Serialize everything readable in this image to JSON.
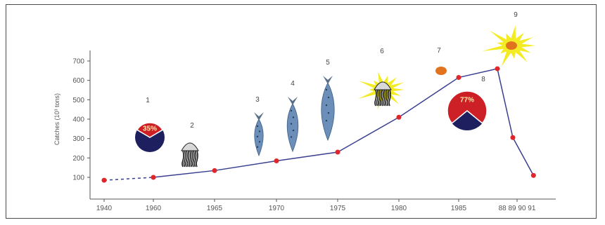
{
  "chart_data": {
    "type": "line",
    "ylabel": "Catches (10³ tons)",
    "yticks": [
      100,
      200,
      300,
      400,
      500,
      600,
      700
    ],
    "xticks": [
      "1940",
      "1960",
      "1965",
      "1970",
      "1975",
      "1980",
      "1985",
      "88 89 90 91"
    ],
    "series": [
      {
        "points": [
          {
            "x": 1940,
            "y": 85
          },
          {
            "x": 1960,
            "y": 100
          },
          {
            "x": 1965,
            "y": 135
          },
          {
            "x": 1970,
            "y": 185
          },
          {
            "x": 1975,
            "y": 230
          },
          {
            "x": 1980,
            "y": 410
          },
          {
            "x": 1985,
            "y": 615
          },
          {
            "x": 1988,
            "y": 660
          },
          {
            "x": 1989.2,
            "y": 305
          },
          {
            "x": 1990.8,
            "y": 110
          }
        ],
        "dashed_until": 1960
      }
    ],
    "annotations": [
      {
        "number": "1",
        "icon": "pie",
        "percent_text": "35%"
      },
      {
        "number": "2",
        "icon": "jellyfish"
      },
      {
        "number": "3",
        "icon": "fish"
      },
      {
        "number": "4",
        "icon": "fish"
      },
      {
        "number": "5",
        "icon": "fish"
      },
      {
        "number": "6",
        "icon": "jellyfish-burst"
      },
      {
        "number": "7",
        "icon": "blob"
      },
      {
        "number": "8",
        "icon": "pie",
        "percent_text": "77%"
      },
      {
        "number": "9",
        "icon": "blob-burst"
      }
    ],
    "colors": {
      "line": "#3a3f8f",
      "point": "#e0262a",
      "pie_red": "#cc1f26",
      "pie_navy": "#1d1f5e",
      "burst": "#f3ec24",
      "fish": "#6b8fb8",
      "blob": "#e1731f"
    }
  }
}
